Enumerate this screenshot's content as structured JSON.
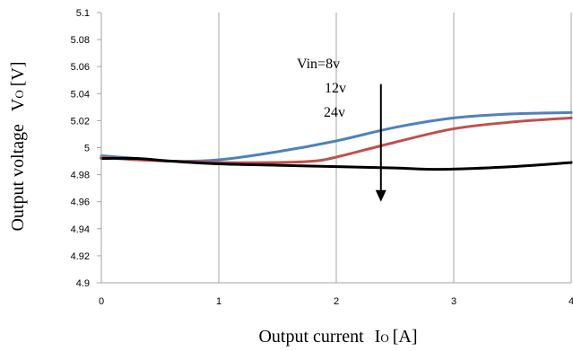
{
  "chart_data": {
    "type": "line",
    "title": "",
    "xlabel": {
      "main": "Output current",
      "symbol": "I",
      "sub": "O",
      "unit": "[A]"
    },
    "ylabel": {
      "main": "Output voltage",
      "symbol": "V",
      "sub": "O",
      "unit": "[V]"
    },
    "xlim": [
      0,
      4
    ],
    "ylim": [
      4.9,
      5.1
    ],
    "x_ticks": [
      "0",
      "1",
      "2",
      "3",
      "4"
    ],
    "y_ticks": [
      "4.9",
      "4.92",
      "4.94",
      "4.96",
      "4.98",
      "5",
      "5.02",
      "5.04",
      "5.06",
      "5.08",
      "5.1"
    ],
    "grid": {
      "vertical": true,
      "horizontal": false
    },
    "annotations": [
      "Vin=8v",
      "12v",
      "24v"
    ],
    "annotation_arrow": {
      "x": 2.38,
      "from_y": 5.047,
      "to_y": 4.96,
      "direction": "down"
    },
    "series": [
      {
        "color": "#4f81bd",
        "x": [
          0,
          0.3,
          0.6,
          1.0,
          1.5,
          2.0,
          2.5,
          3.0,
          3.5,
          4.0
        ],
        "y": [
          4.994,
          4.992,
          4.99,
          4.991,
          4.997,
          5.005,
          5.015,
          5.022,
          5.025,
          5.026
        ]
      },
      {
        "color": "#c0504d",
        "x": [
          0,
          0.3,
          0.6,
          1.0,
          1.5,
          1.8,
          2.0,
          2.5,
          3.0,
          3.5,
          4.0
        ],
        "y": [
          4.993,
          4.991,
          4.99,
          4.989,
          4.989,
          4.99,
          4.993,
          5.004,
          5.014,
          5.019,
          5.022
        ]
      },
      {
        "color": "#000000",
        "x": [
          0,
          0.3,
          0.6,
          1.0,
          1.5,
          2.0,
          2.5,
          2.9,
          3.5,
          4.0
        ],
        "y": [
          4.992,
          4.992,
          4.99,
          4.988,
          4.987,
          4.986,
          4.985,
          4.984,
          4.986,
          4.989
        ]
      }
    ]
  }
}
